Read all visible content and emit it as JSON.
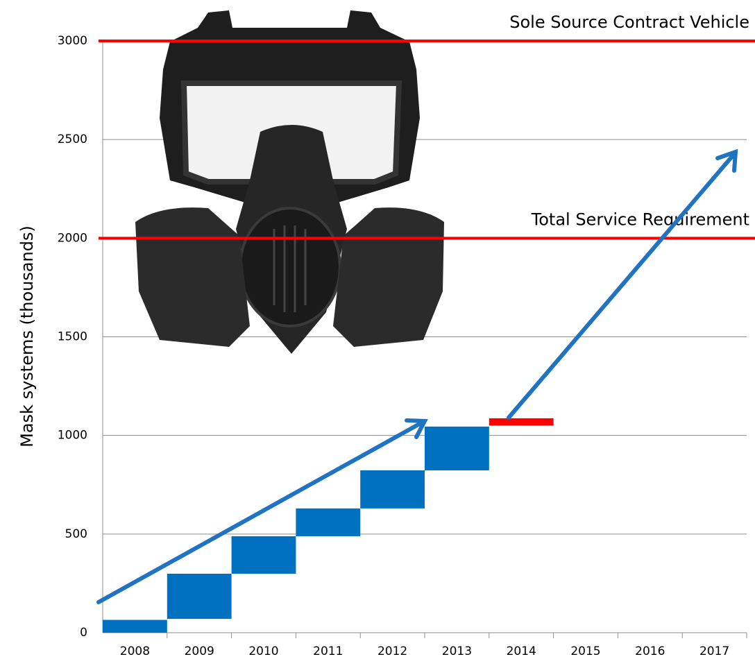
{
  "chart_data": {
    "type": "floating-bar",
    "y_label": "Mask systems (thousands)",
    "categories": [
      "2008",
      "2009",
      "2010",
      "2011",
      "2012",
      "2013",
      "2014",
      "2015",
      "2016",
      "2017"
    ],
    "series": [
      {
        "color": "#0070c0",
        "lows": [
          0,
          70,
          299,
          489,
          630,
          823,
          null,
          null,
          null,
          null
        ],
        "highs": [
          65,
          299,
          489,
          630,
          823,
          1045,
          null,
          null,
          null,
          null
        ]
      },
      {
        "color": "#ff0000",
        "lows": [
          null,
          null,
          null,
          null,
          null,
          null,
          1050,
          null,
          null,
          null
        ],
        "highs": [
          null,
          null,
          null,
          null,
          null,
          null,
          1087,
          null,
          null,
          null
        ]
      }
    ],
    "reference_lines": [
      {
        "value": 3000,
        "label": "Sole Source Contract Vehicle",
        "color": "#ff0000"
      },
      {
        "value": 2000,
        "label": "Total Service Requirement",
        "color": "#ff0000"
      }
    ],
    "ylim": [
      0,
      3000
    ],
    "yticks": [
      0,
      500,
      1000,
      1500,
      2000,
      2500,
      3000
    ],
    "grid": true
  }
}
